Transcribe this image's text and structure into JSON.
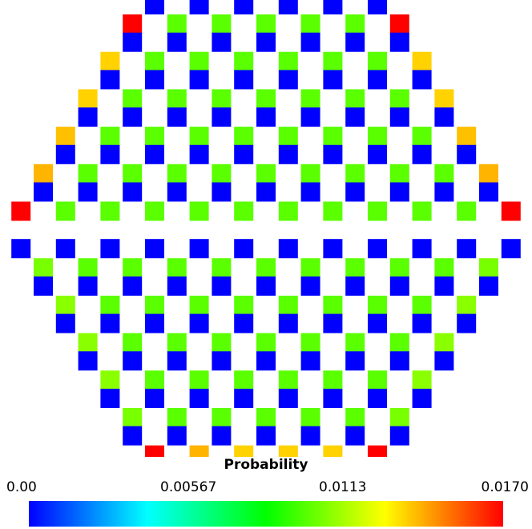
{
  "chart_data": {
    "type": "heatmap",
    "title": "",
    "legend": {
      "title": "Probability",
      "ticks": [
        "0.00",
        "0.00567",
        "0.0113",
        "0.0170"
      ],
      "min": 0.0,
      "max": 0.017,
      "colormap": [
        "#0000ff",
        "#00ffff",
        "#00ff00",
        "#ffff00",
        "#ff0000"
      ]
    },
    "rows": [
      {
        "cells": [
          0.017,
          0,
          0.01,
          0,
          0.01,
          0,
          0.01,
          0,
          0.01,
          0,
          0.01,
          0,
          0.017
        ]
      },
      {
        "cells": [
          0.0135,
          0,
          0.01,
          0,
          0.01,
          0,
          0.01,
          0,
          0.01,
          0,
          0.01,
          0,
          0.01,
          0,
          0.0135
        ]
      },
      {
        "cells": [
          0.0135,
          0,
          0.01,
          0,
          0.01,
          0,
          0.01,
          0,
          0.01,
          0,
          0.01,
          0,
          0.01,
          0,
          0.01,
          0,
          0.0135
        ]
      },
      {
        "cells": [
          0.0138,
          0,
          0.01,
          0,
          0.01,
          0,
          0.01,
          0,
          0.01,
          0,
          0.01,
          0,
          0.01,
          0,
          0.01,
          0,
          0.01,
          0,
          0.0138
        ]
      },
      {
        "cells": [
          0.014,
          0,
          0.01,
          0,
          0.01,
          0,
          0.01,
          0,
          0.01,
          0,
          0.01,
          0,
          0.01,
          0,
          0.01,
          0,
          0.01,
          0,
          0.01,
          0,
          0.014
        ]
      },
      {
        "cells": [
          0.017,
          0,
          0.01,
          0,
          0.01,
          0,
          0.01,
          0,
          0.01,
          0,
          0.01,
          0,
          0.01,
          0,
          0.01,
          0,
          0.01,
          0,
          0.01,
          0,
          0.01,
          0,
          0.017
        ]
      },
      {
        "cells": [
          0,
          0.0105,
          0,
          0.01,
          0,
          0.01,
          0,
          0.01,
          0,
          0.01,
          0,
          0.01,
          0,
          0.01,
          0,
          0.01,
          0,
          0.01,
          0,
          0.01,
          0,
          0.0105,
          0
        ]
      },
      {
        "cells": [
          0,
          0.0108,
          0,
          0.01,
          0,
          0.01,
          0,
          0.01,
          0,
          0.01,
          0,
          0.01,
          0,
          0.01,
          0,
          0.01,
          0,
          0.01,
          0,
          0.0108,
          0
        ]
      },
      {
        "cells": [
          0,
          0.0108,
          0,
          0.01,
          0,
          0.01,
          0,
          0.01,
          0,
          0.01,
          0,
          0.01,
          0,
          0.01,
          0,
          0.01,
          0,
          0.0108,
          0
        ]
      },
      {
        "cells": [
          0,
          0.0108,
          0,
          0.01,
          0,
          0.01,
          0,
          0.01,
          0,
          0.01,
          0,
          0.01,
          0,
          0.01,
          0,
          0.0108,
          0
        ]
      },
      {
        "cells": [
          0,
          0.0105,
          0,
          0.01,
          0,
          0.01,
          0,
          0.01,
          0,
          0.01,
          0,
          0.01,
          0,
          0.0105,
          0
        ]
      },
      {
        "cells": [
          0,
          0.017,
          0,
          0.014,
          0,
          0.0135,
          0,
          0.0135,
          0,
          0.0135,
          0,
          0.017,
          0
        ]
      }
    ]
  }
}
